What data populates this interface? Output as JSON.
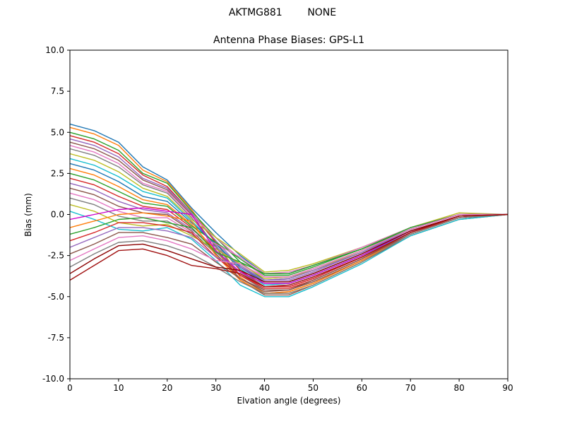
{
  "suptitle": "AKTMG881        NONE",
  "chart_data": {
    "type": "line",
    "title": "Antenna Phase Biases: GPS-L1",
    "xlabel": "Elvation angle (degrees)",
    "ylabel": "Bias (mm)",
    "xlim": [
      0,
      90
    ],
    "ylim": [
      -10,
      10
    ],
    "grid": false,
    "legend": "none",
    "xticks": [
      0,
      10,
      20,
      30,
      40,
      50,
      60,
      70,
      80,
      90
    ],
    "xtick_labels": [
      "0",
      "10",
      "20",
      "30",
      "40",
      "50",
      "60",
      "70",
      "80",
      "90"
    ],
    "yticks": [
      -10,
      -7.5,
      -5,
      -2.5,
      0,
      2.5,
      5,
      7.5,
      10
    ],
    "ytick_labels": [
      "-10.0",
      "-7.5",
      "-5.0",
      "-2.5",
      "0.0",
      "2.5",
      "5.0",
      "7.5",
      "10.0"
    ],
    "x": [
      0,
      5,
      10,
      15,
      20,
      25,
      30,
      35,
      40,
      45,
      50,
      60,
      70,
      80,
      90
    ],
    "series": [
      {
        "color": "#1f77b4",
        "values": [
          5.5,
          5.1,
          4.4,
          2.9,
          2.1,
          0.4,
          -1.1,
          -2.5,
          -3.6,
          -3.6,
          -3.1,
          -2.1,
          -0.8,
          0.0,
          0.0
        ]
      },
      {
        "color": "#ff7f0e",
        "values": [
          5.3,
          4.9,
          4.2,
          2.7,
          2.0,
          0.3,
          -1.7,
          -3.8,
          -4.8,
          -4.7,
          -4.2,
          -2.8,
          -1.2,
          -0.2,
          0.0
        ]
      },
      {
        "color": "#2ca02c",
        "values": [
          5.0,
          4.6,
          3.9,
          2.5,
          1.9,
          0.2,
          -1.4,
          -2.9,
          -4.0,
          -3.9,
          -3.4,
          -2.3,
          -0.9,
          0.0,
          0.0
        ]
      },
      {
        "color": "#d62728",
        "values": [
          4.8,
          4.4,
          3.7,
          2.4,
          1.7,
          0.1,
          -1.7,
          -3.4,
          -4.4,
          -4.4,
          -3.9,
          -2.6,
          -1.1,
          -0.1,
          0.0
        ]
      },
      {
        "color": "#9467bd",
        "values": [
          4.6,
          4.2,
          3.5,
          2.2,
          1.6,
          0.1,
          -1.6,
          -3.2,
          -4.2,
          -4.2,
          -3.7,
          -2.5,
          -1.0,
          -0.1,
          0.0
        ]
      },
      {
        "color": "#8c564b",
        "values": [
          4.4,
          4.0,
          3.3,
          2.1,
          1.5,
          0.0,
          -2.0,
          -4.0,
          -4.9,
          -4.9,
          -4.3,
          -2.9,
          -1.3,
          -0.3,
          0.0
        ]
      },
      {
        "color": "#e377c2",
        "values": [
          4.2,
          3.8,
          3.1,
          1.9,
          1.4,
          -0.1,
          -1.4,
          -2.7,
          -3.8,
          -3.8,
          -3.3,
          -2.2,
          -0.9,
          0.0,
          0.0
        ]
      },
      {
        "color": "#7f7f7f",
        "values": [
          4.0,
          3.6,
          2.9,
          1.8,
          1.3,
          -0.2,
          -1.9,
          -3.7,
          -4.6,
          -4.6,
          -4.0,
          -2.7,
          -1.2,
          -0.2,
          0.0
        ]
      },
      {
        "color": "#bcbd22",
        "values": [
          3.7,
          3.3,
          2.6,
          1.6,
          1.1,
          -0.3,
          -1.4,
          -2.4,
          -3.5,
          -3.4,
          -3.0,
          -2.0,
          -0.8,
          0.1,
          0.0
        ]
      },
      {
        "color": "#17becf",
        "values": [
          3.4,
          3.0,
          2.3,
          1.4,
          1.0,
          -0.4,
          -1.8,
          -3.3,
          -4.3,
          -4.2,
          -3.7,
          -2.5,
          -1.1,
          -0.1,
          0.0
        ]
      },
      {
        "color": "#1f77b4",
        "values": [
          3.1,
          2.7,
          2.0,
          1.1,
          0.8,
          -0.5,
          -1.8,
          -3.2,
          -4.1,
          -4.1,
          -3.6,
          -2.4,
          -1.0,
          -0.1,
          0.0
        ]
      },
      {
        "color": "#ff7f0e",
        "values": [
          2.8,
          2.4,
          1.7,
          0.9,
          0.6,
          -0.6,
          -2.2,
          -4.0,
          -4.8,
          -4.8,
          -4.3,
          -2.9,
          -1.2,
          -0.2,
          0.0
        ]
      },
      {
        "color": "#2ca02c",
        "values": [
          2.5,
          2.1,
          1.4,
          0.7,
          0.5,
          -0.7,
          -1.7,
          -2.7,
          -3.7,
          -3.7,
          -3.2,
          -2.1,
          -0.9,
          0.0,
          0.0
        ]
      },
      {
        "color": "#d62728",
        "values": [
          2.2,
          1.8,
          1.1,
          0.5,
          0.3,
          -0.8,
          -2.2,
          -3.7,
          -4.5,
          -4.5,
          -4.0,
          -2.7,
          -1.1,
          -0.2,
          0.0
        ]
      },
      {
        "color": "#9467bd",
        "values": [
          1.9,
          1.5,
          0.8,
          0.3,
          0.1,
          -0.9,
          -2.0,
          -3.1,
          -4.0,
          -4.0,
          -3.5,
          -2.3,
          -1.0,
          -0.1,
          0.0
        ]
      },
      {
        "color": "#8c564b",
        "values": [
          1.6,
          1.2,
          0.5,
          0.1,
          0.0,
          -1.0,
          -2.4,
          -3.9,
          -4.7,
          -4.6,
          -4.1,
          -2.8,
          -1.2,
          -0.2,
          0.0
        ]
      },
      {
        "color": "#e377c2",
        "values": [
          1.3,
          0.9,
          0.2,
          -0.2,
          -0.2,
          -1.1,
          -1.8,
          -2.6,
          -3.6,
          -3.5,
          -3.1,
          -2.0,
          -0.8,
          0.0,
          0.0
        ]
      },
      {
        "color": "#7f7f7f",
        "values": [
          1.0,
          0.6,
          -0.1,
          -0.4,
          -0.4,
          -1.2,
          -2.3,
          -3.5,
          -4.4,
          -4.3,
          -3.8,
          -2.6,
          -1.1,
          -0.1,
          0.0
        ]
      },
      {
        "color": "#bcbd22",
        "values": [
          0.6,
          0.2,
          -0.5,
          -0.7,
          -0.6,
          -1.3,
          -2.1,
          -3.0,
          -3.9,
          -3.8,
          -3.4,
          -2.2,
          -0.9,
          0.0,
          0.0
        ]
      },
      {
        "color": "#17becf",
        "values": [
          0.2,
          -0.3,
          -0.9,
          -1.0,
          -0.8,
          -1.5,
          -2.8,
          -4.3,
          -5.0,
          -5.0,
          -4.4,
          -3.0,
          -1.3,
          -0.3,
          0.0
        ]
      },
      {
        "color": "#cc00cc",
        "values": [
          -0.3,
          0.0,
          0.3,
          0.4,
          0.2,
          0.0,
          -2.2,
          -3.5,
          -4.2,
          -4.2,
          -3.7,
          -2.5,
          -1.0,
          -0.1,
          0.0
        ]
      },
      {
        "color": "#ff7f0e",
        "values": [
          -0.8,
          -0.4,
          0.0,
          0.1,
          -0.1,
          -0.4,
          -2.5,
          -4.0,
          -4.8,
          -4.7,
          -4.2,
          -2.8,
          -1.2,
          -0.2,
          0.0
        ]
      },
      {
        "color": "#2ca02c",
        "values": [
          -1.2,
          -0.8,
          -0.3,
          -0.2,
          -0.5,
          -0.8,
          -2.3,
          -2.9,
          -3.6,
          -3.6,
          -3.1,
          -2.1,
          -0.8,
          0.0,
          0.0
        ]
      },
      {
        "color": "#d62728",
        "values": [
          -1.6,
          -1.1,
          -0.5,
          -0.5,
          -0.7,
          -1.1,
          -2.6,
          -3.7,
          -4.4,
          -4.4,
          -3.9,
          -2.6,
          -1.1,
          -0.1,
          0.0
        ]
      },
      {
        "color": "#9467bd",
        "values": [
          -2.0,
          -1.4,
          -0.8,
          -0.8,
          -1.0,
          -1.4,
          -2.6,
          -3.2,
          -4.0,
          -3.9,
          -3.4,
          -2.3,
          -0.9,
          0.0,
          0.0
        ]
      },
      {
        "color": "#8c564b",
        "values": [
          -2.4,
          -1.8,
          -1.1,
          -1.1,
          -1.4,
          -1.8,
          -2.9,
          -3.9,
          -4.6,
          -4.6,
          -4.0,
          -2.7,
          -1.2,
          -0.2,
          0.0
        ]
      },
      {
        "color": "#e377c2",
        "values": [
          -2.8,
          -2.1,
          -1.4,
          -1.3,
          -1.6,
          -2.1,
          -2.8,
          -3.0,
          -3.8,
          -3.8,
          -3.3,
          -2.2,
          -0.9,
          0.0,
          0.0
        ]
      },
      {
        "color": "#7f7f7f",
        "values": [
          -3.2,
          -2.4,
          -1.7,
          -1.6,
          -1.9,
          -2.4,
          -3.2,
          -4.1,
          -4.8,
          -4.8,
          -4.3,
          -2.9,
          -1.2,
          -0.2,
          0.0
        ]
      },
      {
        "color": "#8b0000",
        "values": [
          -3.6,
          -2.7,
          -1.9,
          -1.8,
          -2.2,
          -2.7,
          -3.2,
          -3.4,
          -4.1,
          -4.1,
          -3.6,
          -2.4,
          -1.0,
          -0.1,
          0.0
        ]
      },
      {
        "color": "#a01010",
        "values": [
          -4.0,
          -3.1,
          -2.2,
          -2.1,
          -2.5,
          -3.1,
          -3.3,
          -3.6,
          -4.4,
          -4.3,
          -3.8,
          -2.6,
          -1.1,
          -0.1,
          0.0
        ]
      }
    ]
  }
}
